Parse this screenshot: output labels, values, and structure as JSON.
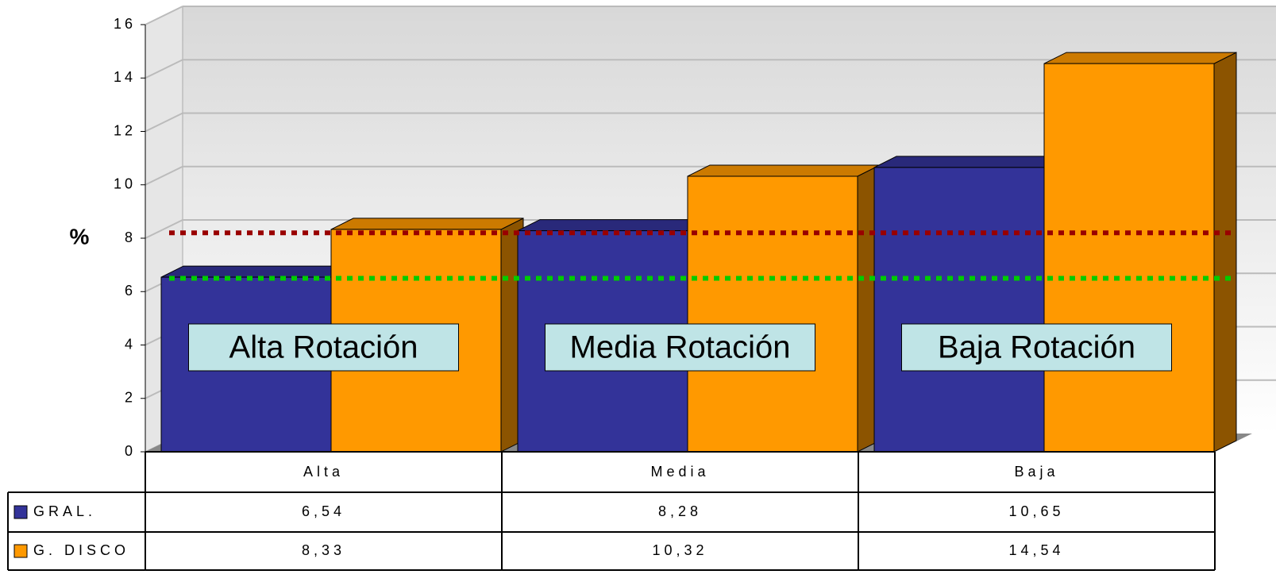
{
  "chart_data": {
    "type": "bar3d",
    "y_label": "%",
    "categories": [
      "Alta",
      "Media",
      "Baja"
    ],
    "series": [
      {
        "name": "GRAL.",
        "color": "#333399",
        "values": [
          6.54,
          8.28,
          10.65
        ],
        "value_labels": [
          "6,54",
          "8,28",
          "10,65"
        ]
      },
      {
        "name": "G. DISCO",
        "color": "#ff9900",
        "values": [
          8.33,
          10.32,
          14.54
        ],
        "value_labels": [
          "8,33",
          "10,32",
          "14,54"
        ]
      }
    ],
    "annotations": [
      "Alta Rotación",
      "Media Rotación",
      "Baja Rotación"
    ],
    "reference_lines": [
      {
        "value": 8.2,
        "color": "#990000"
      },
      {
        "value": 6.5,
        "color": "#00cc00"
      }
    ],
    "ylim": [
      0,
      16
    ],
    "yticks": [
      0,
      2,
      4,
      6,
      8,
      10,
      12,
      14,
      16
    ],
    "grid": true
  }
}
